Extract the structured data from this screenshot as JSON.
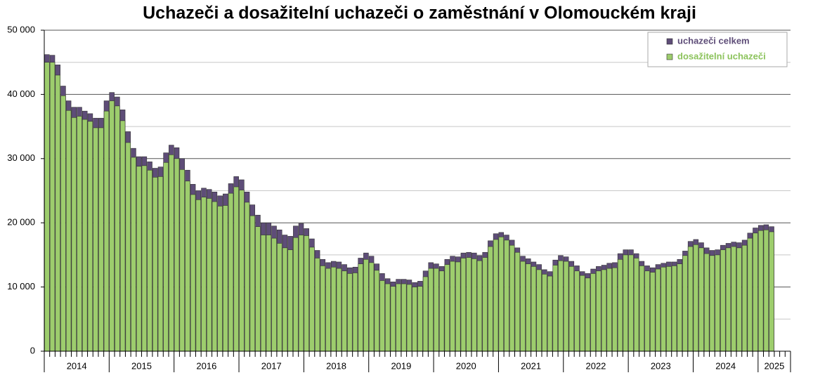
{
  "chart_data": {
    "type": "overlap-bar",
    "title": "Uchazeči a dosažitelní uchazeči o zaměstnání v Olomouckém kraji",
    "categories": [
      "2014",
      null,
      null,
      null,
      null,
      null,
      null,
      null,
      null,
      null,
      null,
      null,
      "2015",
      null,
      null,
      null,
      null,
      null,
      null,
      null,
      null,
      null,
      null,
      null,
      "2016",
      null,
      null,
      null,
      null,
      null,
      null,
      null,
      null,
      null,
      null,
      null,
      "2017",
      null,
      null,
      null,
      null,
      null,
      null,
      null,
      null,
      null,
      null,
      null,
      "2018",
      null,
      null,
      null,
      null,
      null,
      null,
      null,
      null,
      null,
      null,
      null,
      "2019",
      null,
      null,
      null,
      null,
      null,
      null,
      null,
      null,
      null,
      null,
      null,
      "2020",
      null,
      null,
      null,
      null,
      null,
      null,
      null,
      null,
      null,
      null,
      null,
      "2021",
      null,
      null,
      null,
      null,
      null,
      null,
      null,
      null,
      null,
      null,
      null,
      "2022",
      null,
      null,
      null,
      null,
      null,
      null,
      null,
      null,
      null,
      null,
      null,
      "2023",
      null,
      null,
      null,
      null,
      null,
      null,
      null,
      null,
      null,
      null,
      null,
      "2024",
      null,
      null,
      null,
      null,
      null,
      null,
      null,
      null,
      null,
      null,
      null,
      "2025",
      null,
      null,
      null,
      null,
      null
    ],
    "series": [
      {
        "name": "uchazeči celkem",
        "color": "#5e4d78",
        "text_color": "#5e4d78",
        "values": [
          46200,
          46100,
          44600,
          41300,
          39000,
          38000,
          38000,
          37400,
          37000,
          36300,
          36300,
          39000,
          40300,
          39600,
          37600,
          34200,
          31600,
          30300,
          30300,
          29500,
          28500,
          28700,
          30900,
          32100,
          31700,
          30000,
          28200,
          26000,
          25000,
          25400,
          25200,
          24800,
          24200,
          24500,
          26100,
          27200,
          26700,
          24800,
          22800,
          21200,
          20000,
          20000,
          19500,
          18900,
          18100,
          17900,
          19500,
          19900,
          19100,
          17500,
          15700,
          14300,
          13800,
          14000,
          13900,
          13500,
          13000,
          13100,
          14500,
          15300,
          14800,
          13600,
          12100,
          11300,
          10800,
          11200,
          11200,
          11100,
          10700,
          10900,
          12500,
          13800,
          13600,
          13200,
          14300,
          14800,
          14700,
          15300,
          15400,
          15300,
          14900,
          15400,
          17200,
          18300,
          18500,
          18100,
          17300,
          16100,
          14800,
          14400,
          13900,
          13500,
          12700,
          12400,
          14200,
          14900,
          14700,
          14000,
          13300,
          12400,
          12100,
          12800,
          13200,
          13400,
          13700,
          13800,
          15200,
          15800,
          15800,
          15200,
          14000,
          13300,
          13000,
          13500,
          13700,
          13900,
          13900,
          14300,
          15600,
          17100,
          17400,
          16900,
          16100,
          15700,
          15800,
          16500,
          16800,
          17000,
          16900,
          17300,
          18400,
          19200,
          19600,
          19700,
          19400,
          null,
          null,
          null
        ]
      },
      {
        "name": "dosažitelní uchazeči",
        "color": "#9dcd6d",
        "text_color": "#8cc35c",
        "values": [
          45000,
          45000,
          43000,
          39800,
          37500,
          36400,
          36600,
          36100,
          35800,
          34800,
          34800,
          37400,
          39000,
          38200,
          35900,
          32500,
          30200,
          28800,
          28900,
          28200,
          27100,
          27200,
          29400,
          30600,
          30000,
          28300,
          26500,
          24400,
          23600,
          24000,
          23800,
          23300,
          22600,
          22700,
          24600,
          25600,
          25100,
          23200,
          21100,
          19400,
          18100,
          18100,
          17600,
          16800,
          16100,
          15800,
          17700,
          18100,
          18000,
          16200,
          14500,
          13300,
          12900,
          13100,
          12900,
          12500,
          12100,
          12200,
          13600,
          14300,
          13800,
          12600,
          11000,
          10500,
          10100,
          10500,
          10500,
          10400,
          10000,
          10100,
          11600,
          12900,
          12900,
          12500,
          13500,
          14000,
          13900,
          14500,
          14600,
          14400,
          14100,
          14600,
          16300,
          17400,
          17800,
          17300,
          16500,
          15400,
          14000,
          13600,
          13200,
          12700,
          12000,
          11700,
          13400,
          14100,
          14000,
          13200,
          12500,
          11800,
          11400,
          12100,
          12500,
          12700,
          12900,
          13000,
          14300,
          15000,
          15000,
          14500,
          13300,
          12500,
          12300,
          12800,
          13100,
          13200,
          13300,
          13600,
          14900,
          16300,
          16600,
          16100,
          15200,
          14900,
          15000,
          15800,
          16100,
          16300,
          16100,
          16500,
          17600,
          18400,
          18800,
          18900,
          18600,
          null,
          null,
          null
        ]
      }
    ],
    "ylim": [
      0,
      50000
    ],
    "yticks": [
      0,
      {
        "value": 10000,
        "label": "10 000"
      },
      {
        "value": 20000,
        "label": "20 000"
      },
      {
        "value": 30000,
        "label": "30 000"
      },
      {
        "value": 40000,
        "label": "40 000"
      },
      {
        "value": 50000,
        "label": "50 000"
      }
    ],
    "minor_yticks": [
      5000,
      15000,
      25000,
      35000,
      45000
    ],
    "grid": true,
    "legend": "top-right"
  }
}
